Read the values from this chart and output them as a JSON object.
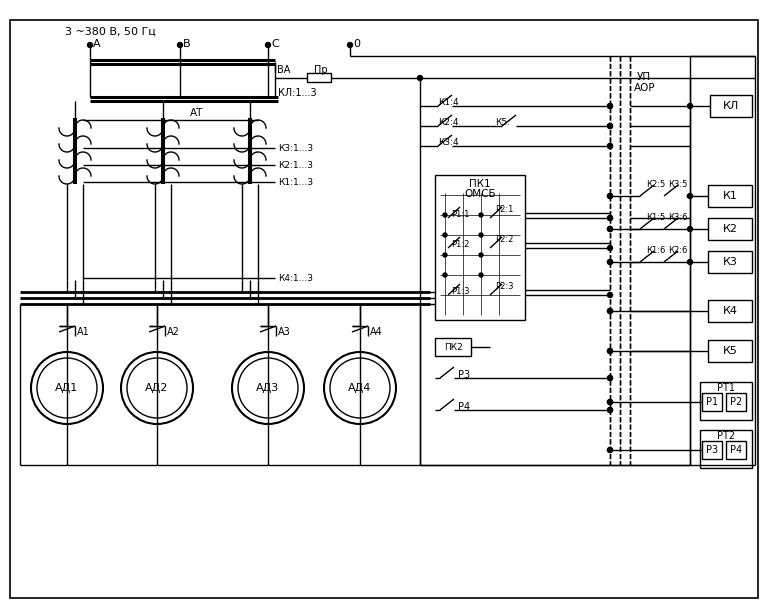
{
  "bg_color": "#ffffff",
  "line_color": "#000000",
  "supply_label": "3 ~380 В, 50 Гц",
  "phase_labels": [
    "А",
    "В",
    "С"
  ],
  "zero_label": "0",
  "labels": {
    "VA": "ВА",
    "Pr": "Пр",
    "AT": "АТ",
    "KL13": "КЛ:1...3",
    "K313": "К3:1...3",
    "K213": "К2:1...3",
    "K113": "К1:1...3",
    "K413": "К4:1...3",
    "K14": "К1:4",
    "K24": "К2:4",
    "K34": "К3:4",
    "K5c": "К5:",
    "PK1": "ПК1",
    "OMSB": "ОМСБ",
    "P11": "Р1:1",
    "P21": "Р2:1",
    "P12": "Р1:2",
    "P22": "Р2:2",
    "P13": "Р1:3",
    "P23": "Р2:3",
    "PK2": "ПК2",
    "P3": "Р3",
    "P4": "Р4",
    "UP": "УП",
    "AOR": "АОР",
    "KL": "КЛ",
    "K1": "К1",
    "K2": "К2",
    "K3": "К3",
    "K4": "К4",
    "K5": "К5",
    "K25": "К2:5",
    "K35": "К3:5",
    "K15": "К1:5",
    "K36": "К3:6",
    "K16": "К1:6",
    "K26": "К2:6",
    "RT1": "РТ1",
    "RT2": "РТ2",
    "R1": "Р1",
    "R2": "Р2",
    "R3": "Р3",
    "R4": "Р4",
    "AD1": "АД1",
    "AD2": "АД2",
    "AD3": "АД3",
    "AD4": "АД4",
    "A1": "А1",
    "A2": "А2",
    "A3": "А3",
    "A4": "А4"
  }
}
